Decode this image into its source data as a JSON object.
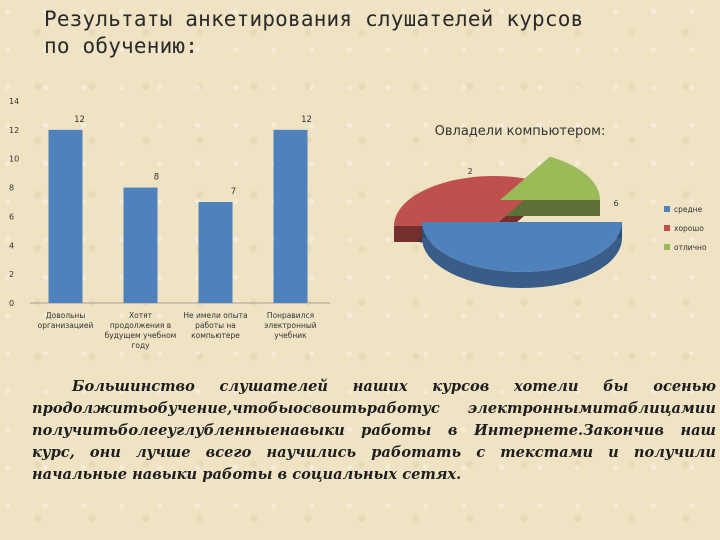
{
  "title": {
    "line1": "Результаты анкетирования слушателей курсов",
    "line2": "по обучению:"
  },
  "paragraph": "Большинство слушателей наших курсов хотели бы осенью продолжитьобучение,чтобыосвоитьработус электроннымитаблицамии получитьболееуглубленныенавыки работы в Интернете.Закончив наш курс, они лучше всего научились работать с текстами и получили начальные навыки работы в социальных сетях.",
  "chart_data": [
    {
      "type": "bar",
      "categories": [
        [
          "Довольны",
          "организацией"
        ],
        [
          "Хотят",
          "продолжения в",
          "будущем учебном",
          "году"
        ],
        [
          "Не имели опыта",
          "работы на",
          "компьютере"
        ],
        [
          "Понравился",
          "электронный",
          "учебник"
        ]
      ],
      "values": [
        12,
        8,
        7,
        12
      ],
      "ylim": [
        0,
        14
      ],
      "yticks": [
        0,
        2,
        4,
        6,
        8,
        10,
        12,
        14
      ],
      "color": "#4f81bd",
      "grid": false,
      "title": "",
      "xlabel": "",
      "ylabel": ""
    },
    {
      "type": "pie",
      "title": "Овладели компьютером:",
      "labels": [
        "хорошо",
        "отлично",
        "средне"
      ],
      "values": [
        4,
        2,
        6
      ],
      "colors": [
        "#c0504d",
        "#9bbb59",
        "#4f81bd"
      ],
      "style": "3d-exploded",
      "legend": {
        "placement": "right",
        "entries": [
          {
            "label": "средне",
            "color": "#4f81bd"
          },
          {
            "label": "хорошо",
            "color": "#c0504d"
          },
          {
            "label": "отлично",
            "color": "#9bbb59"
          }
        ]
      }
    }
  ]
}
